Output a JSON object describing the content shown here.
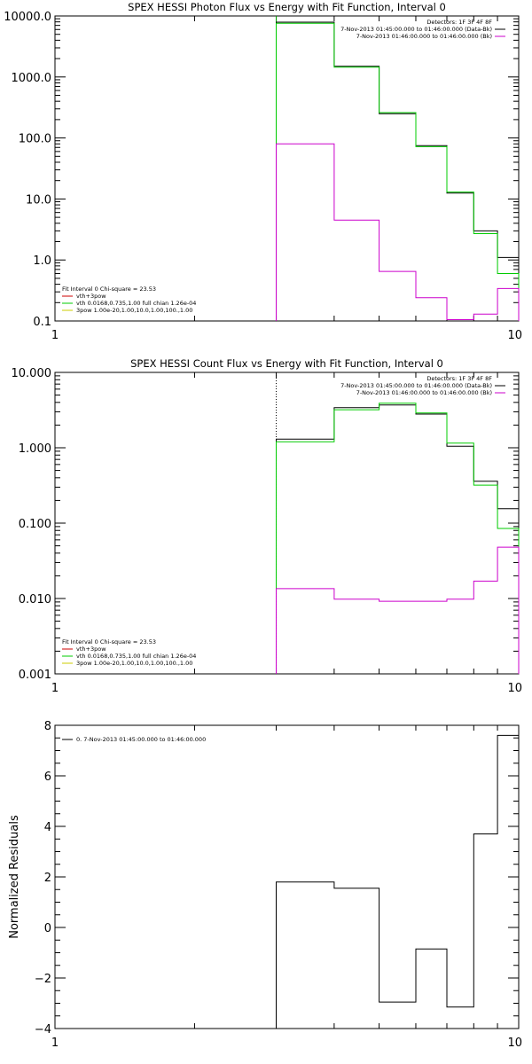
{
  "chart_data": [
    {
      "type": "line",
      "title": "SPEX HESSI Photon Flux vs Energy with Fit Function, Interval 0",
      "xlabel": "",
      "ylabel": "",
      "xscale": "log",
      "yscale": "log",
      "xlim": [
        1,
        10
      ],
      "ylim": [
        0.1,
        10000.0
      ],
      "x_ticks": [
        {
          "v": 1,
          "label": "1"
        },
        {
          "v": 10,
          "label": "10"
        }
      ],
      "y_ticks": [
        {
          "v": 10000,
          "label": "10000.0"
        },
        {
          "v": 1000,
          "label": "1000.0"
        },
        {
          "v": 100,
          "label": "100.0"
        },
        {
          "v": 10,
          "label": "10.0"
        },
        {
          "v": 1,
          "label": "1.0"
        },
        {
          "v": 0.1,
          "label": "0.1"
        }
      ],
      "legend_top_right": {
        "header": "Detectors: 1F 3F 4F 8F",
        "entries": [
          {
            "text": "7-Nov-2013 01:45:00.000 to 01:46:00.000 (Data-Bk)",
            "color": "#000000"
          },
          {
            "text": "7-Nov-2013 01:46:00.000 to 01:46:00.000 (Bk)",
            "color": "#cc00cc"
          }
        ]
      },
      "legend_bottom_left": {
        "header": "Fit Interval 0   Chi-square = 23.53",
        "entries": [
          {
            "text": "vth+3pow",
            "color": "#cc0000"
          },
          {
            "text": "vth 0.0168,0.735,1.00  full chian 1.26e-04",
            "color": "#00cc00"
          },
          {
            "text": "3pow 1.00e-20,1.00,10.0,1.00,100.,1.00",
            "color": "#cccc00"
          }
        ]
      },
      "vline": {
        "x": 3.0,
        "color": "#00aa00"
      },
      "series": [
        {
          "color": "#000000",
          "edges": [
            3.0,
            4.0,
            5.0,
            6.0,
            7.0,
            8.0,
            9.0,
            10.0
          ],
          "values": [
            7900,
            1500,
            250,
            75,
            12.5,
            3.0,
            1.1
          ]
        },
        {
          "color": "#00cc00",
          "edges": [
            3.0,
            4.0,
            5.0,
            6.0,
            7.0,
            8.0,
            9.0,
            10.0
          ],
          "values": [
            7600,
            1450,
            260,
            72,
            13,
            2.7,
            0.6
          ]
        },
        {
          "color": "#cc00cc",
          "edges": [
            3.0,
            4.0,
            5.0,
            6.0,
            7.0,
            8.0,
            9.0,
            10.0
          ],
          "values": [
            80,
            4.5,
            0.65,
            0.24,
            0.105,
            0.13,
            0.34
          ]
        }
      ]
    },
    {
      "type": "line",
      "title": "SPEX HESSI Count Flux vs Energy with Fit Function, Interval 0",
      "xlabel": "",
      "ylabel": "",
      "xscale": "log",
      "yscale": "log",
      "xlim": [
        1,
        10
      ],
      "ylim": [
        0.001,
        10.0
      ],
      "x_ticks": [
        {
          "v": 1,
          "label": "1"
        },
        {
          "v": 10,
          "label": "10"
        }
      ],
      "y_ticks": [
        {
          "v": 10,
          "label": "10.000"
        },
        {
          "v": 1,
          "label": "1.000"
        },
        {
          "v": 0.1,
          "label": "0.100"
        },
        {
          "v": 0.01,
          "label": "0.010"
        },
        {
          "v": 0.001,
          "label": "0.001"
        }
      ],
      "legend_top_right": {
        "header": "Detectors: 1F 3F 4F 8F",
        "entries": [
          {
            "text": "7-Nov-2013 01:45:00.000 to 01:46:00.000 (Data-Bk)",
            "color": "#000000"
          },
          {
            "text": "7-Nov-2013 01:46:00.000 to 01:46:00.000 (Bk)",
            "color": "#cc00cc"
          }
        ]
      },
      "legend_bottom_left": {
        "header": "Fit Interval 0   Chi-square = 23.53",
        "entries": [
          {
            "text": "vth+3pow",
            "color": "#cc0000"
          },
          {
            "text": "vth 0.0168,0.735,1.00  full chian 1.26e-04",
            "color": "#00cc00"
          },
          {
            "text": "3pow 1.00e-20,1.00,10.0,1.00,100.,1.00",
            "color": "#cccc00"
          }
        ]
      },
      "vline": {
        "x": 3.0,
        "color": "#000000",
        "dotted": true
      },
      "series": [
        {
          "color": "#000000",
          "edges": [
            3.0,
            4.0,
            5.0,
            6.0,
            7.0,
            8.0,
            9.0,
            10.0
          ],
          "values": [
            1.3,
            3.4,
            3.7,
            2.8,
            1.05,
            0.36,
            0.155
          ]
        },
        {
          "color": "#00cc00",
          "edges": [
            3.0,
            4.0,
            5.0,
            6.0,
            7.0,
            8.0,
            9.0,
            10.0
          ],
          "values": [
            1.2,
            3.2,
            3.9,
            2.9,
            1.15,
            0.32,
            0.085
          ]
        },
        {
          "color": "#cc00cc",
          "edges": [
            3.0,
            4.0,
            5.0,
            6.0,
            7.0,
            8.0,
            9.0,
            10.0
          ],
          "values": [
            0.0135,
            0.0098,
            0.0092,
            0.0092,
            0.0098,
            0.017,
            0.048
          ]
        }
      ]
    },
    {
      "type": "line",
      "title": "",
      "xlabel": "",
      "ylabel": "Normalized Residuals",
      "xscale": "log",
      "yscale": "linear",
      "xlim": [
        1,
        10
      ],
      "ylim": [
        -4,
        8
      ],
      "x_ticks": [
        {
          "v": 1,
          "label": "1"
        },
        {
          "v": 10,
          "label": "10"
        }
      ],
      "y_ticks": [
        {
          "v": 8,
          "label": "8"
        },
        {
          "v": 6,
          "label": "6"
        },
        {
          "v": 4,
          "label": "4"
        },
        {
          "v": 2,
          "label": "2"
        },
        {
          "v": 0,
          "label": "0"
        },
        {
          "v": -2,
          "label": "−2"
        },
        {
          "v": -4,
          "label": "−4"
        }
      ],
      "legend_top_left": {
        "entries": [
          {
            "text": "0.  7-Nov-2013 01:45:00.000 to 01:46:00.000",
            "color": "#000000"
          }
        ]
      },
      "series": [
        {
          "color": "#000000",
          "edges": [
            3.0,
            4.0,
            5.0,
            6.0,
            7.0,
            8.0,
            9.0,
            10.0
          ],
          "values": [
            1.8,
            1.55,
            -2.95,
            -0.85,
            -3.15,
            3.7,
            7.6
          ]
        }
      ]
    }
  ]
}
